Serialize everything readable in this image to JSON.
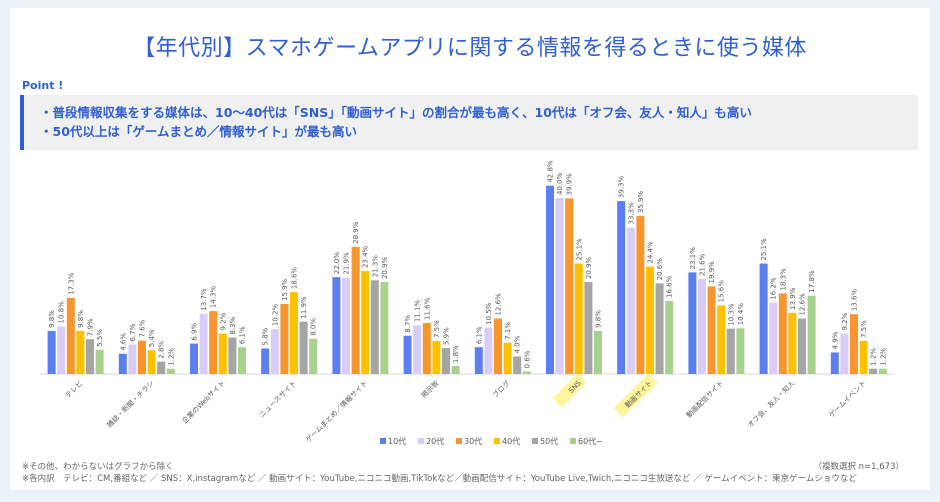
{
  "header": {
    "title": "【年代別】スマホゲームアプリに関する情報を得るときに使う媒体"
  },
  "point": {
    "label": "Point !",
    "lines": [
      "・普段情報収集をする媒体は、10～40代は「SNS」「動画サイト」の割合が最も高く、10代は「オフ会、友人・知人」も高い",
      "・50代以上は「ゲームまとめ／情報サイト」が最も高い"
    ]
  },
  "chart_data": {
    "type": "bar",
    "categories": [
      "テレビ",
      "雑誌・新聞・チラシ",
      "企業のWebサイト",
      "ニュースサイト",
      "ゲームまとめ／情報サイト",
      "掲示板",
      "ブログ",
      "SNS",
      "動画サイト",
      "動画配信サイト",
      "オフ会、友人・知人",
      "ゲームイベント"
    ],
    "highlighted_categories": [
      "SNS",
      "動画サイト"
    ],
    "unit": "%",
    "ylim": [
      0,
      45
    ],
    "grid": false,
    "legend": "bottom",
    "series": [
      {
        "name": "10代",
        "color": "#5b7ff0",
        "values": [
          9.8,
          4.6,
          6.9,
          5.8,
          22.0,
          8.7,
          6.1,
          42.8,
          39.3,
          23.1,
          25.1,
          4.9
        ]
      },
      {
        "name": "20代",
        "color": "#d9cdf7",
        "values": [
          10.8,
          6.7,
          13.7,
          10.2,
          21.9,
          11.1,
          10.5,
          40.0,
          33.3,
          21.6,
          16.2,
          9.2
        ]
      },
      {
        "name": "30代",
        "color": "#f7962e",
        "values": [
          17.3,
          7.6,
          14.3,
          15.9,
          28.9,
          11.6,
          12.6,
          39.9,
          35.9,
          19.9,
          18.3,
          13.6
        ]
      },
      {
        "name": "40代",
        "color": "#ffc000",
        "values": [
          9.8,
          5.4,
          9.2,
          18.6,
          23.4,
          7.5,
          7.1,
          25.1,
          24.4,
          15.6,
          13.9,
          7.5
        ]
      },
      {
        "name": "50代",
        "color": "#a5a5a5",
        "values": [
          7.9,
          2.8,
          8.3,
          11.9,
          21.3,
          5.9,
          4.0,
          20.9,
          20.6,
          10.3,
          12.6,
          1.2
        ]
      },
      {
        "name": "60代~",
        "color": "#a9d18e",
        "values": [
          5.5,
          1.2,
          6.1,
          8.0,
          20.9,
          1.8,
          0.6,
          9.8,
          16.6,
          10.4,
          17.8,
          1.2
        ]
      }
    ]
  },
  "notes": {
    "line1": "※その他、わからないはグラフから除く",
    "line2": "※各内訳　テレビ：CM,番組など ／ SNS：X,instagramなど ／ 動画サイト：YouTube,ニコニコ動画,TikTokなど／動画配信サイト：YouTube Live,Twich,ニコニコ生放送など ／ ゲームイベント：東京ゲームショウなど",
    "sample": "（複数選択 n=1,673）"
  }
}
